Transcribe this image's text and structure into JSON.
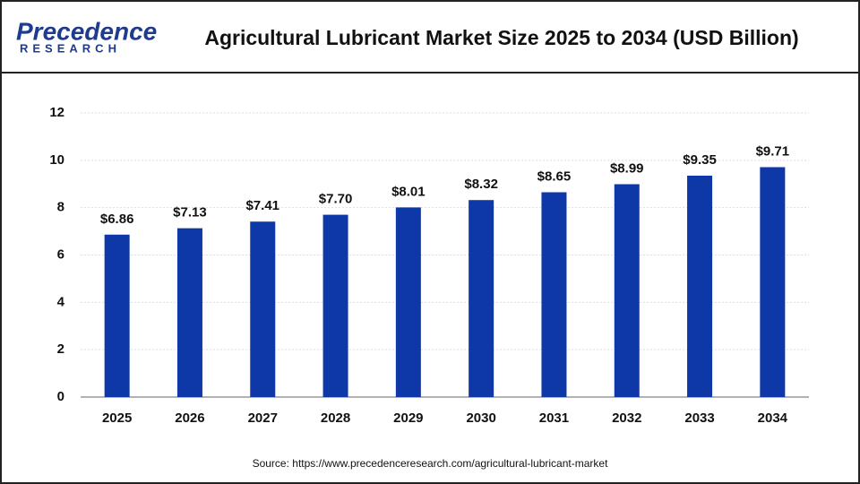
{
  "logo": {
    "name": "Precedence",
    "tagline": "RESEARCH"
  },
  "chart_data": {
    "type": "bar",
    "title": "Agricultural Lubricant Market Size 2025 to 2034 (USD Billion)",
    "categories": [
      "2025",
      "2026",
      "2027",
      "2028",
      "2029",
      "2030",
      "2031",
      "2032",
      "2033",
      "2034"
    ],
    "values": [
      6.86,
      7.13,
      7.41,
      7.7,
      8.01,
      8.32,
      8.65,
      8.99,
      9.35,
      9.71
    ],
    "value_labels": [
      "$6.86",
      "$7.13",
      "$7.41",
      "$7.70",
      "$8.01",
      "$8.32",
      "$8.65",
      "$8.99",
      "$9.35",
      "$9.71"
    ],
    "color": "#0e38a8",
    "ylim": [
      0,
      12
    ],
    "yticks": [
      0,
      2,
      4,
      6,
      8,
      10,
      12
    ],
    "grid": true,
    "source": "Source: https://www.precedenceresearch.com/agricultural-lubricant-market"
  }
}
